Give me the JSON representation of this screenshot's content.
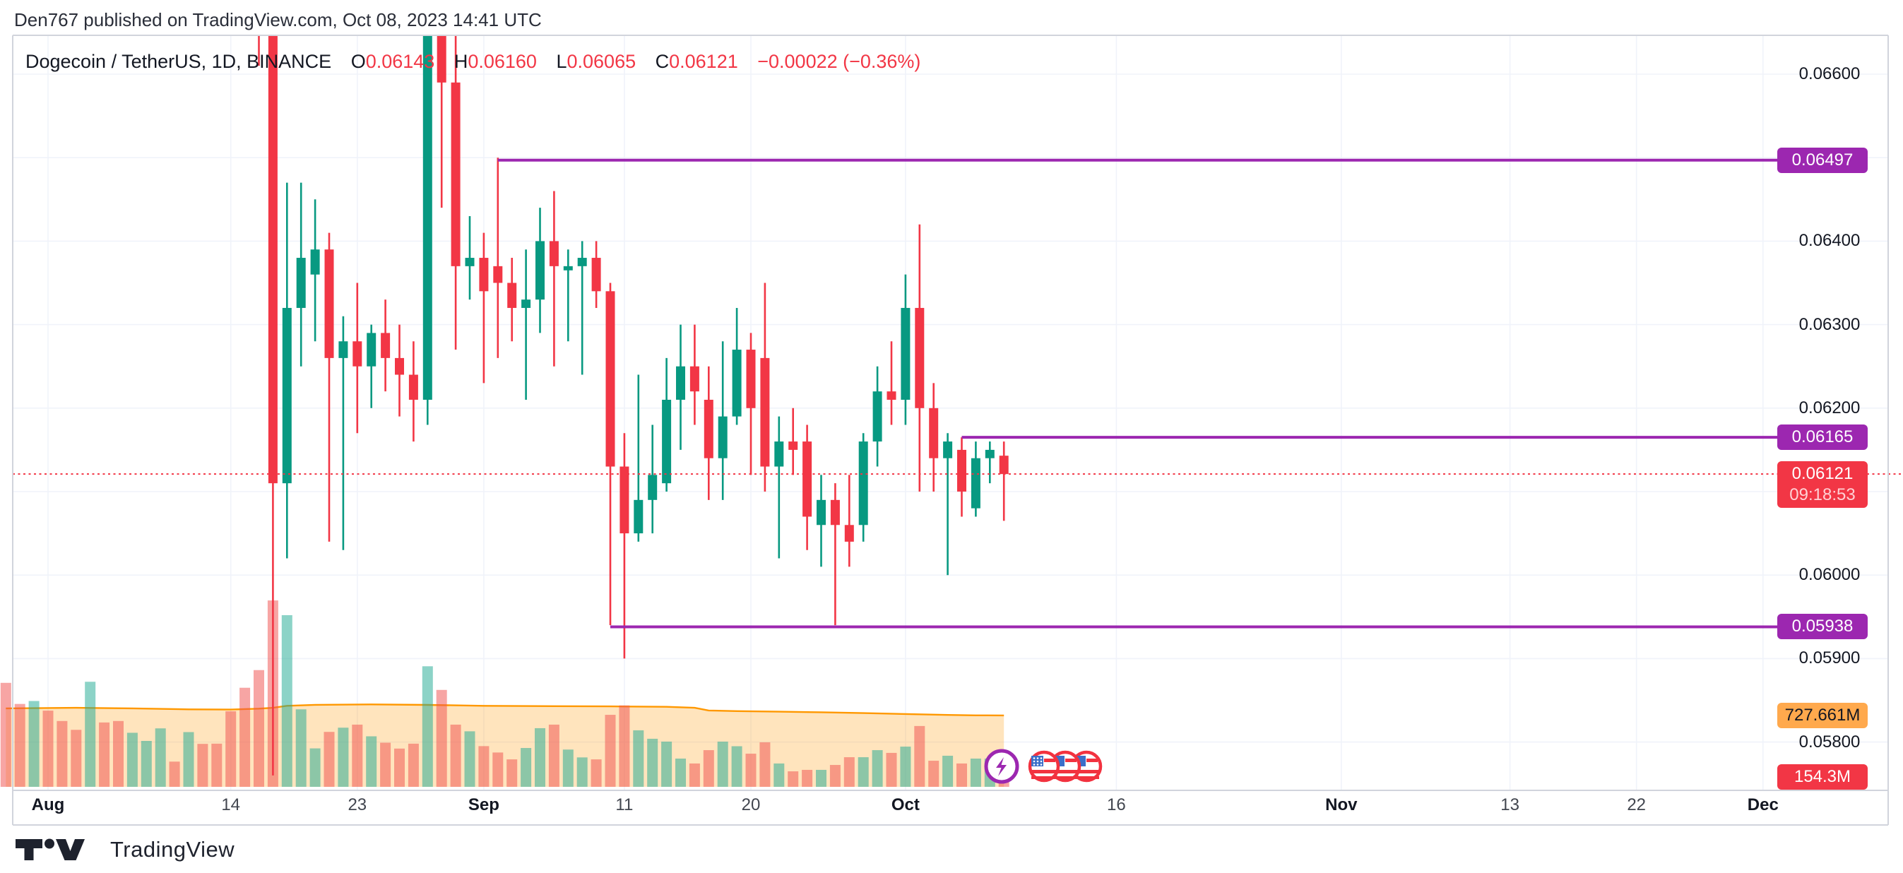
{
  "header": {
    "text": "Den767 published on TradingView.com, Oct 08, 2023 14:41 UTC"
  },
  "title": {
    "symbol": "Dogecoin / TetherUS, 1D, BINANCE",
    "o_label": "O",
    "o_value": "0.06143",
    "h_label": "H",
    "h_value": "0.06160",
    "l_label": "L",
    "l_value": "0.06065",
    "c_label": "C",
    "c_value": "0.06121",
    "change": "−0.00022 (−0.36%)"
  },
  "watermark": {
    "brand": "TradingView",
    "tv-logo-icon": "tv-glyph"
  },
  "colors": {
    "up": "#089981",
    "down": "#f23645",
    "level": "#9c27b0",
    "ma_line": "#ff9800",
    "ma_fill": "rgba(255,152,0,0.26)",
    "vol_up": "rgba(34,171,148,0.52)",
    "vol_down": "rgba(239,83,80,0.52)",
    "grid": "#f0f3fa",
    "frame": "#d1d4dc",
    "last_dotted": "#f23645"
  },
  "price_axis": {
    "ticks": [
      {
        "label": "0.06600",
        "value": 0.066
      },
      {
        "label": "0.06400",
        "value": 0.064
      },
      {
        "label": "0.06300",
        "value": 0.063
      },
      {
        "label": "0.06200",
        "value": 0.062
      },
      {
        "label": "0.06000",
        "value": 0.06
      },
      {
        "label": "0.05900",
        "value": 0.059
      },
      {
        "label": "0.05800",
        "value": 0.058
      }
    ],
    "level_badges": [
      {
        "label": "0.06497",
        "value": 0.06497
      },
      {
        "label": "0.06165",
        "value": 0.06165
      },
      {
        "label": "0.05938",
        "value": 0.05938
      }
    ],
    "last_price_badge": {
      "price": "0.06121",
      "countdown": "09:18:53"
    },
    "volume_ma_badge": {
      "label": "727.661M",
      "value": 727.661
    },
    "volume_badge": {
      "label": "154.3M",
      "value": 154.3
    }
  },
  "time_axis": {
    "note": "d = days since Aug 1 2023",
    "ticks": [
      {
        "label": "Aug",
        "d": 0,
        "major": true
      },
      {
        "label": "14",
        "d": 13,
        "major": false
      },
      {
        "label": "23",
        "d": 22,
        "major": false
      },
      {
        "label": "Sep",
        "d": 31,
        "major": true
      },
      {
        "label": "11",
        "d": 41,
        "major": false
      },
      {
        "label": "20",
        "d": 50,
        "major": false
      },
      {
        "label": "Oct",
        "d": 61,
        "major": true
      },
      {
        "label": "16",
        "d": 76,
        "major": false
      },
      {
        "label": "Nov",
        "d": 92,
        "major": true
      },
      {
        "label": "13",
        "d": 104,
        "major": false
      },
      {
        "label": "22",
        "d": 113,
        "major": false
      },
      {
        "label": "Dec",
        "d": 122,
        "major": true
      }
    ]
  },
  "chart_data": {
    "type": "candlestick_with_volume",
    "title": "Dogecoin / TetherUS, 1D, BINANCE",
    "x_unit": "days_since_2023-08-01",
    "price_range_visible": [
      0.0578,
      0.0665
    ],
    "price_gridline_step": 0.001,
    "last_price": 0.06121,
    "countdown": "09:18:53",
    "ohlc_last": {
      "o": 0.06143,
      "h": 0.0616,
      "l": 0.06065,
      "c": 0.06121,
      "change": -0.00022,
      "change_pct": -0.36
    },
    "candles": [
      [
        15,
        0.067,
        0.0672,
        0.0661,
        0.0666
      ],
      [
        16,
        0.0666,
        0.0668,
        0.0576,
        0.0611
      ],
      [
        17,
        0.0611,
        0.0647,
        0.0602,
        0.0632
      ],
      [
        18,
        0.0632,
        0.0647,
        0.0625,
        0.0638
      ],
      [
        19,
        0.0636,
        0.0645,
        0.0628,
        0.0639
      ],
      [
        20,
        0.0639,
        0.0641,
        0.0604,
        0.0626
      ],
      [
        21,
        0.0626,
        0.0631,
        0.0603,
        0.0628
      ],
      [
        22,
        0.0628,
        0.0635,
        0.0617,
        0.0625
      ],
      [
        23,
        0.0625,
        0.063,
        0.062,
        0.0629
      ],
      [
        24,
        0.0629,
        0.0633,
        0.0622,
        0.0626
      ],
      [
        25,
        0.0626,
        0.063,
        0.0619,
        0.0624
      ],
      [
        26,
        0.0624,
        0.0628,
        0.0616,
        0.0621
      ],
      [
        27,
        0.0621,
        0.0668,
        0.0618,
        0.0666
      ],
      [
        28,
        0.0666,
        0.0668,
        0.0644,
        0.0659
      ],
      [
        29,
        0.0659,
        0.0667,
        0.0627,
        0.0637
      ],
      [
        30,
        0.0637,
        0.0643,
        0.0633,
        0.0638
      ],
      [
        31,
        0.0638,
        0.0641,
        0.0623,
        0.0634
      ],
      [
        32,
        0.0637,
        0.065,
        0.0626,
        0.0635
      ],
      [
        33,
        0.0635,
        0.0638,
        0.0628,
        0.0632
      ],
      [
        34,
        0.0632,
        0.0639,
        0.0621,
        0.0633
      ],
      [
        35,
        0.0633,
        0.0644,
        0.0629,
        0.064
      ],
      [
        36,
        0.064,
        0.0646,
        0.0625,
        0.0637
      ],
      [
        37,
        0.06365,
        0.0639,
        0.0628,
        0.0637
      ],
      [
        38,
        0.0637,
        0.064,
        0.0624,
        0.0638
      ],
      [
        39,
        0.0638,
        0.064,
        0.0632,
        0.0634
      ],
      [
        40,
        0.0634,
        0.0635,
        0.0594,
        0.0613
      ],
      [
        41,
        0.0613,
        0.0617,
        0.059,
        0.0605
      ],
      [
        42,
        0.0605,
        0.0624,
        0.0604,
        0.0609
      ],
      [
        43,
        0.0609,
        0.0618,
        0.0605,
        0.0612
      ],
      [
        44,
        0.0611,
        0.0626,
        0.061,
        0.0621
      ],
      [
        45,
        0.0621,
        0.063,
        0.0615,
        0.0625
      ],
      [
        46,
        0.0625,
        0.063,
        0.0618,
        0.0622
      ],
      [
        47,
        0.0621,
        0.0625,
        0.0609,
        0.0614
      ],
      [
        48,
        0.0614,
        0.0628,
        0.0609,
        0.0619
      ],
      [
        49,
        0.0619,
        0.0632,
        0.0618,
        0.0627
      ],
      [
        50,
        0.0627,
        0.0629,
        0.0612,
        0.062
      ],
      [
        51,
        0.0626,
        0.0635,
        0.061,
        0.0613
      ],
      [
        52,
        0.0613,
        0.0619,
        0.0602,
        0.0616
      ],
      [
        53,
        0.0616,
        0.062,
        0.0612,
        0.0615
      ],
      [
        54,
        0.0616,
        0.0618,
        0.0603,
        0.0607
      ],
      [
        55,
        0.0606,
        0.0612,
        0.0601,
        0.0609
      ],
      [
        56,
        0.0609,
        0.0611,
        0.0594,
        0.0606
      ],
      [
        57,
        0.0606,
        0.0612,
        0.0601,
        0.0604
      ],
      [
        58,
        0.0606,
        0.0617,
        0.0604,
        0.0616
      ],
      [
        59,
        0.0616,
        0.0625,
        0.0613,
        0.0622
      ],
      [
        60,
        0.0622,
        0.0628,
        0.0618,
        0.0621
      ],
      [
        61,
        0.0621,
        0.0636,
        0.0618,
        0.0632
      ],
      [
        62,
        0.0632,
        0.0642,
        0.061,
        0.062
      ],
      [
        63,
        0.062,
        0.0623,
        0.061,
        0.0614
      ],
      [
        64,
        0.0614,
        0.0617,
        0.06,
        0.0616
      ],
      [
        65,
        0.0615,
        0.06165,
        0.0607,
        0.061
      ],
      [
        66,
        0.0608,
        0.0616,
        0.0607,
        0.0614
      ],
      [
        67,
        0.0614,
        0.0616,
        0.0611,
        0.0615
      ],
      [
        68,
        0.06143,
        0.0616,
        0.06065,
        0.06121
      ]
    ],
    "volume_millions": [
      [
        -3,
        1060,
        "r"
      ],
      [
        -2,
        845,
        "r"
      ],
      [
        -1,
        875,
        "g"
      ],
      [
        0,
        777,
        "r"
      ],
      [
        1,
        671,
        "r"
      ],
      [
        2,
        581,
        "r"
      ],
      [
        3,
        1071,
        "g"
      ],
      [
        4,
        656,
        "r"
      ],
      [
        5,
        671,
        "r"
      ],
      [
        6,
        551,
        "g"
      ],
      [
        7,
        468,
        "g"
      ],
      [
        8,
        596,
        "g"
      ],
      [
        9,
        257,
        "r"
      ],
      [
        10,
        558,
        "g"
      ],
      [
        11,
        438,
        "r"
      ],
      [
        12,
        440,
        "r"
      ],
      [
        13,
        770,
        "r"
      ],
      [
        14,
        1010,
        "r"
      ],
      [
        15,
        1190,
        "r"
      ],
      [
        16,
        1900,
        "r"
      ],
      [
        17,
        1750,
        "g"
      ],
      [
        18,
        790,
        "g"
      ],
      [
        19,
        392,
        "g"
      ],
      [
        20,
        560,
        "r"
      ],
      [
        21,
        603,
        "g"
      ],
      [
        22,
        634,
        "r"
      ],
      [
        23,
        515,
        "g"
      ],
      [
        24,
        450,
        "r"
      ],
      [
        25,
        390,
        "r"
      ],
      [
        26,
        440,
        "r"
      ],
      [
        27,
        1229,
        "g"
      ],
      [
        28,
        988,
        "r"
      ],
      [
        29,
        634,
        "r"
      ],
      [
        30,
        566,
        "g"
      ],
      [
        31,
        415,
        "r"
      ],
      [
        32,
        350,
        "r"
      ],
      [
        33,
        280,
        "r"
      ],
      [
        34,
        396,
        "g"
      ],
      [
        35,
        598,
        "g"
      ],
      [
        36,
        634,
        "r"
      ],
      [
        37,
        380,
        "g"
      ],
      [
        38,
        300,
        "g"
      ],
      [
        39,
        280,
        "r"
      ],
      [
        40,
        734,
        "r"
      ],
      [
        41,
        830,
        "r"
      ],
      [
        42,
        576,
        "g"
      ],
      [
        43,
        490,
        "g"
      ],
      [
        44,
        461,
        "g"
      ],
      [
        45,
        288,
        "g"
      ],
      [
        46,
        238,
        "r"
      ],
      [
        47,
        374,
        "r"
      ],
      [
        48,
        461,
        "g"
      ],
      [
        49,
        414,
        "g"
      ],
      [
        50,
        338,
        "r"
      ],
      [
        51,
        454,
        "r"
      ],
      [
        52,
        238,
        "g"
      ],
      [
        53,
        158,
        "r"
      ],
      [
        54,
        173,
        "r"
      ],
      [
        55,
        173,
        "g"
      ],
      [
        56,
        223,
        "r"
      ],
      [
        57,
        302,
        "r"
      ],
      [
        58,
        302,
        "g"
      ],
      [
        59,
        374,
        "g"
      ],
      [
        60,
        346,
        "r"
      ],
      [
        61,
        410,
        "g"
      ],
      [
        62,
        620,
        "r"
      ],
      [
        63,
        266,
        "r"
      ],
      [
        64,
        317,
        "g"
      ],
      [
        65,
        238,
        "r"
      ],
      [
        66,
        288,
        "g"
      ],
      [
        67,
        288,
        "g"
      ],
      [
        68,
        154.3,
        "r"
      ]
    ],
    "volume_ma_millions": [
      [
        -3,
        800
      ],
      [
        2,
        806
      ],
      [
        6,
        800
      ],
      [
        10,
        790
      ],
      [
        13,
        788
      ],
      [
        15,
        797
      ],
      [
        16,
        806
      ],
      [
        17,
        826
      ],
      [
        19,
        836
      ],
      [
        23,
        840
      ],
      [
        27,
        835
      ],
      [
        31,
        826
      ],
      [
        36,
        822
      ],
      [
        40,
        820
      ],
      [
        44,
        816
      ],
      [
        46,
        806
      ],
      [
        47,
        778
      ],
      [
        49,
        772
      ],
      [
        52,
        766
      ],
      [
        55,
        760
      ],
      [
        58,
        752
      ],
      [
        61,
        742
      ],
      [
        64,
        733
      ],
      [
        66,
        729
      ],
      [
        68,
        727.661
      ]
    ],
    "levels": [
      {
        "price": 0.06497,
        "from_day": 32
      },
      {
        "price": 0.05938,
        "from_day": 40
      },
      {
        "price": 0.06165,
        "from_day": 65
      }
    ],
    "legend_position": "none",
    "grid": true
  },
  "markers": {
    "lightning-icon": "lightning-bolt-circle",
    "flag-icons": "three-overlapping-us-flag-circles"
  }
}
